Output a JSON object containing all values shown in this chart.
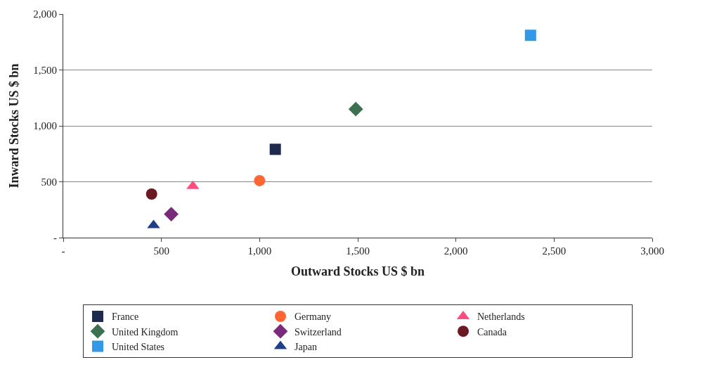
{
  "chart_data": {
    "type": "scatter",
    "xlabel": "Outward Stocks US $ bn",
    "ylabel": "Inward Stocks US $ bn",
    "xlim": [
      0,
      3000
    ],
    "xticks": [
      {
        "value": 0,
        "label": "-"
      },
      500,
      {
        "value": 1000,
        "label": "1,000"
      },
      {
        "value": 1500,
        "label": "1,500"
      },
      {
        "value": 2000,
        "label": "2,000"
      },
      {
        "value": 2500,
        "label": "2,500"
      },
      {
        "value": 3000,
        "label": "3,000"
      }
    ],
    "ylim": [
      0,
      2000
    ],
    "yticks": [
      {
        "value": 0,
        "label": "-"
      },
      500,
      {
        "value": 1000,
        "label": "1,000"
      },
      {
        "value": 1500,
        "label": "1,500"
      },
      {
        "value": 2000,
        "label": "2,000"
      }
    ],
    "grid": "y",
    "legend": "bottom",
    "series": [
      {
        "name": "France",
        "color": "#1f2a4f",
        "marker": "square",
        "x": [
          1080
        ],
        "values": [
          790
        ]
      },
      {
        "name": "Germany",
        "color": "#ff6633",
        "marker": "circle",
        "x": [
          1000
        ],
        "values": [
          510
        ]
      },
      {
        "name": "Netherlands",
        "color": "#ff4d80",
        "marker": "triangle",
        "x": [
          660
        ],
        "values": [
          460
        ]
      },
      {
        "name": "United Kingdom",
        "color": "#3d7050",
        "marker": "diamond",
        "x": [
          1490
        ],
        "values": [
          1150
        ]
      },
      {
        "name": "Switzerland",
        "color": "#7a2a7a",
        "marker": "diamond",
        "x": [
          550
        ],
        "values": [
          210
        ]
      },
      {
        "name": "Canada",
        "color": "#6b1a24",
        "marker": "circle",
        "x": [
          450
        ],
        "values": [
          390
        ]
      },
      {
        "name": "United States",
        "color": "#3399e6",
        "marker": "square",
        "x": [
          2380
        ],
        "values": [
          1810
        ]
      },
      {
        "name": "Japan",
        "color": "#1f3f8c",
        "marker": "triangle",
        "x": [
          460
        ],
        "values": [
          110
        ]
      }
    ]
  }
}
